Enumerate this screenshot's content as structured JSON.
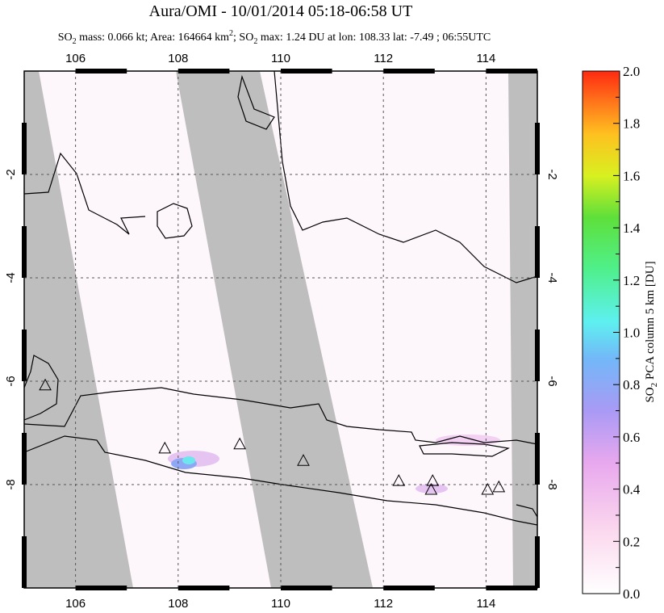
{
  "chart_data": {
    "type": "map",
    "title": "Aura/OMI - 10/01/2014 05:18-06:58 UT",
    "subtitle": [
      "SO",
      "2",
      " mass: 0.066 kt; Area: 164664 km",
      "2",
      "; SO",
      "2",
      " max: 1.24 DU at lon: 108.33 lat: -7.49 ; 06:55UTC"
    ],
    "xlim": [
      105,
      115
    ],
    "ylim": [
      -10,
      0
    ],
    "xticks": [
      106,
      108,
      110,
      112,
      114
    ],
    "yticks": [
      -2,
      -4,
      -6,
      -8
    ],
    "grid": true,
    "volcanoes": {
      "lon": [
        105.41,
        107.74,
        109.2,
        110.44,
        112.3,
        112.96,
        112.93,
        114.03,
        114.25
      ],
      "lat": [
        -6.09,
        -7.31,
        -7.23,
        -7.55,
        -7.94,
        -7.94,
        -8.11,
        -8.11,
        -8.06
      ]
    },
    "colorbar": {
      "label": [
        "SO",
        "2",
        " PCA column 5 km [DU]"
      ],
      "lim": [
        0,
        2
      ],
      "ticks": [
        {
          "value": 0,
          "label": "0.0"
        },
        {
          "value": 0.2,
          "label": "0.2"
        },
        {
          "value": 0.4,
          "label": "0.4"
        },
        {
          "value": 0.6,
          "label": "0.6"
        },
        {
          "value": 0.8,
          "label": "0.8"
        },
        {
          "value": 1,
          "label": "1.0"
        },
        {
          "value": 1.2,
          "label": "1.2"
        },
        {
          "value": 1.4,
          "label": "1.4"
        },
        {
          "value": 1.6,
          "label": "1.6"
        },
        {
          "value": 1.8,
          "label": "1.8"
        },
        {
          "value": 2,
          "label": "2.0"
        }
      ]
    }
  }
}
